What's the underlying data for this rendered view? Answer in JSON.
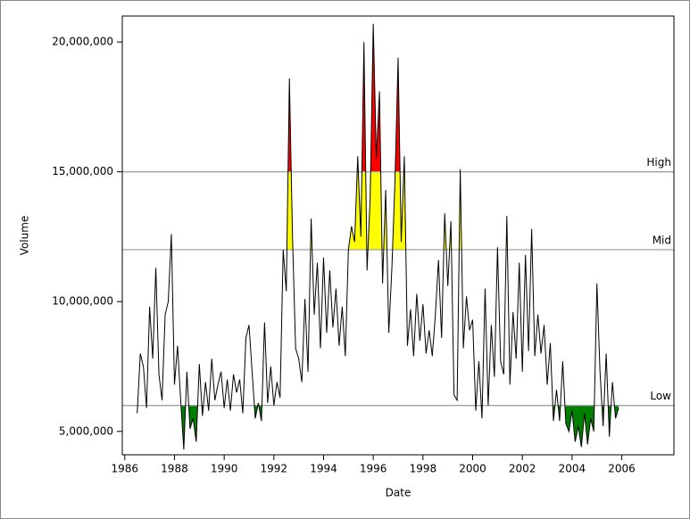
{
  "chart_data": {
    "type": "line",
    "xlabel": "Date",
    "ylabel": "Volume",
    "x": [
      1986.5,
      1986.625,
      1986.75,
      1986.875,
      1987,
      1987.125,
      1987.25,
      1987.375,
      1987.5,
      1987.625,
      1987.75,
      1987.875,
      1988,
      1988.125,
      1988.25,
      1988.375,
      1988.5,
      1988.625,
      1988.75,
      1988.875,
      1989,
      1989.125,
      1989.25,
      1989.375,
      1989.5,
      1989.625,
      1989.75,
      1989.875,
      1990,
      1990.125,
      1990.25,
      1990.375,
      1990.5,
      1990.625,
      1990.75,
      1990.875,
      1991,
      1991.125,
      1991.25,
      1991.375,
      1991.5,
      1991.625,
      1991.75,
      1991.875,
      1992,
      1992.125,
      1992.25,
      1992.375,
      1992.5,
      1992.625,
      1992.75,
      1992.875,
      1993,
      1993.125,
      1993.25,
      1993.375,
      1993.5,
      1993.625,
      1993.75,
      1993.875,
      1994,
      1994.125,
      1994.25,
      1994.375,
      1994.5,
      1994.625,
      1994.75,
      1994.875,
      1995,
      1995.125,
      1995.25,
      1995.375,
      1995.5,
      1995.625,
      1995.75,
      1995.875,
      1996,
      1996.125,
      1996.25,
      1996.375,
      1996.5,
      1996.625,
      1996.75,
      1996.875,
      1997,
      1997.125,
      1997.25,
      1997.375,
      1997.5,
      1997.625,
      1997.75,
      1997.875,
      1998,
      1998.125,
      1998.25,
      1998.375,
      1998.5,
      1998.625,
      1998.75,
      1998.875,
      1999,
      1999.125,
      1999.25,
      1999.375,
      1999.5,
      1999.625,
      1999.75,
      1999.875,
      2000,
      2000.125,
      2000.25,
      2000.375,
      2000.5,
      2000.625,
      2000.75,
      2000.875,
      2001,
      2001.125,
      2001.25,
      2001.375,
      2001.5,
      2001.625,
      2001.75,
      2001.875,
      2002,
      2002.125,
      2002.25,
      2002.375,
      2002.5,
      2002.625,
      2002.75,
      2002.875,
      2003,
      2003.125,
      2003.25,
      2003.375,
      2003.5,
      2003.625,
      2003.75,
      2003.875,
      2004,
      2004.125,
      2004.25,
      2004.375,
      2004.5,
      2004.625,
      2004.75,
      2004.875,
      2005,
      2005.125,
      2005.25,
      2005.375,
      2005.5,
      2005.625,
      2005.75,
      2005.875
    ],
    "series": [
      {
        "color": "#000000",
        "values": [
          5700000,
          8000000,
          7500000,
          5900000,
          9800000,
          7800000,
          11300000,
          7200000,
          6200000,
          9500000,
          10000000,
          12600000,
          6800000,
          8300000,
          6200000,
          4300000,
          7300000,
          5100000,
          5500000,
          4600000,
          7600000,
          5600000,
          6900000,
          5800000,
          7800000,
          6200000,
          6800000,
          7300000,
          5900000,
          7000000,
          5800000,
          7200000,
          6500000,
          7000000,
          5700000,
          8600000,
          9100000,
          7300000,
          5500000,
          6100000,
          5400000,
          9200000,
          6100000,
          7500000,
          6000000,
          6900000,
          6300000,
          12000000,
          10400000,
          18600000,
          12500000,
          8200000,
          7800000,
          6900000,
          10100000,
          7300000,
          13200000,
          9500000,
          11500000,
          8200000,
          11700000,
          8800000,
          11200000,
          9000000,
          10500000,
          8300000,
          9800000,
          7900000,
          12000000,
          12900000,
          12300000,
          15600000,
          12500000,
          20000000,
          11200000,
          14000000,
          20700000,
          15500000,
          18100000,
          10700000,
          14300000,
          8800000,
          11300000,
          14700000,
          19400000,
          12300000,
          15600000,
          8300000,
          9700000,
          7900000,
          10300000,
          8500000,
          9900000,
          8000000,
          8900000,
          7900000,
          9500000,
          11600000,
          8600000,
          13400000,
          10600000,
          13100000,
          6400000,
          6200000,
          15100000,
          8200000,
          10200000,
          8900000,
          9300000,
          5800000,
          7700000,
          5500000,
          10500000,
          6000000,
          9100000,
          7100000,
          12100000,
          7700000,
          7200000,
          13300000,
          6800000,
          9600000,
          7800000,
          11500000,
          7300000,
          11800000,
          8100000,
          12800000,
          7900000,
          9500000,
          8000000,
          9100000,
          6800000,
          8400000,
          5400000,
          6600000,
          5400000,
          7700000,
          5300000,
          5000000,
          5800000,
          4600000,
          5200000,
          4400000,
          5700000,
          4500000,
          5500000,
          5000000,
          10700000,
          7300000,
          5200000,
          8000000,
          4800000,
          6900000,
          5500000,
          5900000
        ]
      }
    ],
    "reference_lines": [
      {
        "label": "High",
        "value": 15000000,
        "color": "#ff0000"
      },
      {
        "label": "Mid",
        "value": 12000000,
        "color": "#ffff00"
      },
      {
        "label": "Low",
        "value": 6000000,
        "color": "#008000"
      }
    ],
    "reference_line_color": "#a0a0a0",
    "xlim": [
      1985.9,
      2008.1
    ],
    "xticks": [
      1986,
      1988,
      1990,
      1992,
      1994,
      1996,
      1998,
      2000,
      2002,
      2004,
      2006
    ],
    "ylim": [
      4100000,
      21000000
    ],
    "yticks": [
      {
        "value": 5000000,
        "label": "5,000,000"
      },
      {
        "value": 10000000,
        "label": "10,000,000"
      },
      {
        "value": 15000000,
        "label": "15,000,000"
      },
      {
        "value": 20000000,
        "label": "20,000,000"
      }
    ]
  }
}
